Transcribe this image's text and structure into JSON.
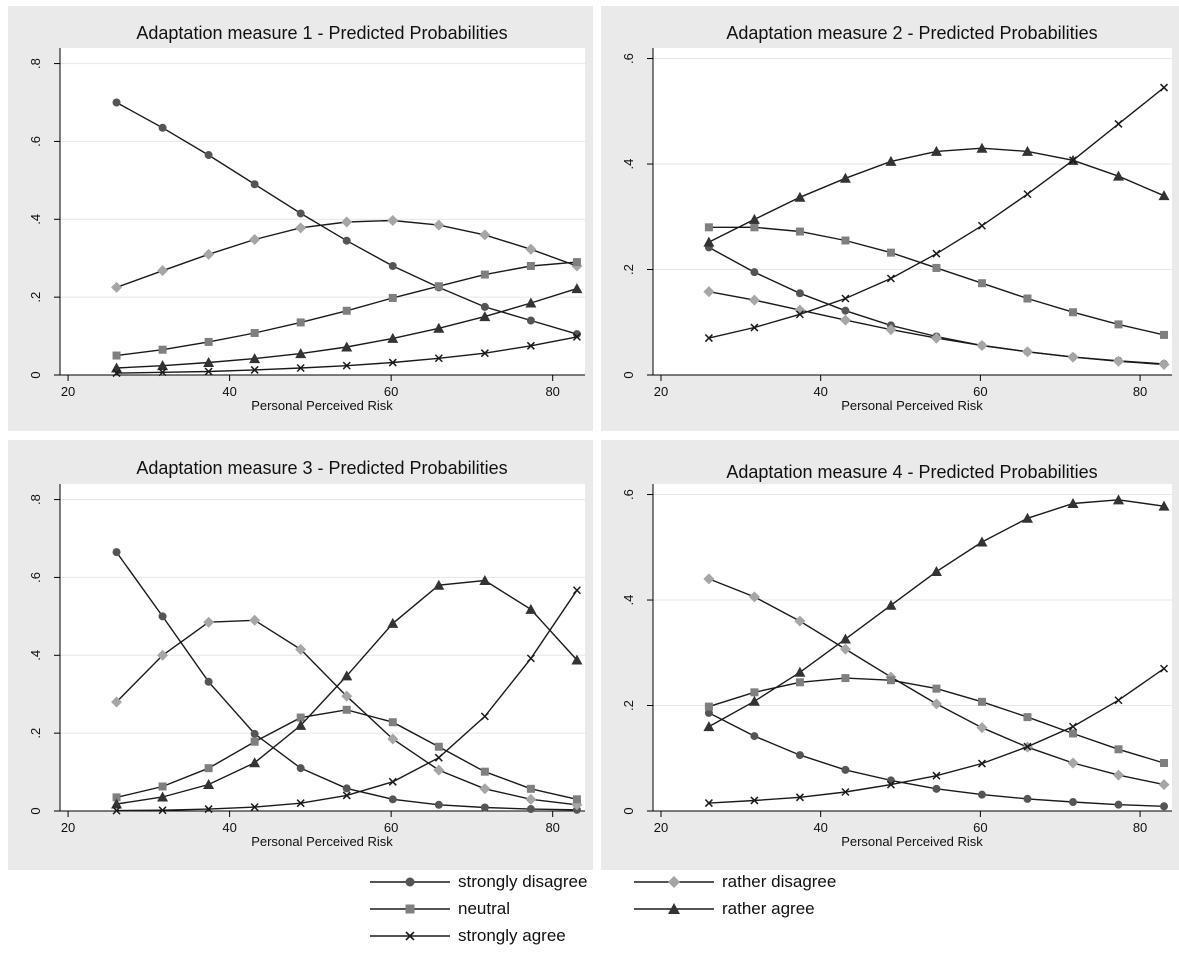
{
  "legend": {
    "items": [
      {
        "label": "strongly disagree",
        "marker": "circle",
        "color": "#555555"
      },
      {
        "label": "rather disagree",
        "marker": "diamond",
        "color": "#a6a6a6"
      },
      {
        "label": "neutral",
        "marker": "square",
        "color": "#7f7f7f"
      },
      {
        "label": "rather agree",
        "marker": "triangle",
        "color": "#333333"
      },
      {
        "label": "strongly agree",
        "marker": "x",
        "color": "#1a1a1a"
      }
    ]
  },
  "chart_data": [
    {
      "type": "line",
      "title": "Adaptation measure 1 - Predicted Probabilities",
      "xlabel": "Personal Perceived Risk",
      "ylabel": "",
      "xlim": [
        19,
        84
      ],
      "ylim": [
        0,
        0.84
      ],
      "xticks": [
        20,
        40,
        60,
        80
      ],
      "xtick_labels": [
        "20",
        "40",
        "60",
        "80"
      ],
      "yticks": [
        0,
        0.2,
        0.4,
        0.6,
        0.8
      ],
      "ytick_labels": [
        "0",
        ".2",
        ".4",
        ".6",
        ".8"
      ],
      "grid": true,
      "x": [
        26,
        31.7,
        37.4,
        43.1,
        48.8,
        54.5,
        60.2,
        65.9,
        71.6,
        77.3,
        83
      ],
      "series": [
        {
          "name": "strongly disagree",
          "marker": "circle",
          "values": [
            0.7,
            0.635,
            0.565,
            0.49,
            0.415,
            0.345,
            0.28,
            0.225,
            0.175,
            0.14,
            0.105
          ]
        },
        {
          "name": "rather disagree",
          "marker": "diamond",
          "values": [
            0.225,
            0.268,
            0.31,
            0.348,
            0.378,
            0.393,
            0.397,
            0.385,
            0.36,
            0.323,
            0.28
          ]
        },
        {
          "name": "neutral",
          "marker": "square",
          "values": [
            0.05,
            0.065,
            0.085,
            0.108,
            0.135,
            0.165,
            0.198,
            0.228,
            0.258,
            0.28,
            0.29
          ]
        },
        {
          "name": "rather agree",
          "marker": "triangle",
          "values": [
            0.018,
            0.024,
            0.032,
            0.042,
            0.055,
            0.072,
            0.094,
            0.12,
            0.15,
            0.185,
            0.222
          ]
        },
        {
          "name": "strongly agree",
          "marker": "x",
          "values": [
            0.005,
            0.007,
            0.009,
            0.013,
            0.018,
            0.024,
            0.032,
            0.043,
            0.056,
            0.075,
            0.098
          ]
        }
      ]
    },
    {
      "type": "line",
      "title": "Adaptation measure 2 - Predicted Probabilities",
      "xlabel": "Personal Perceived Risk",
      "ylabel": "",
      "xlim": [
        19,
        84
      ],
      "ylim": [
        0,
        0.62
      ],
      "xticks": [
        20,
        40,
        60,
        80
      ],
      "xtick_labels": [
        "20",
        "40",
        "60",
        "80"
      ],
      "yticks": [
        0,
        0.2,
        0.4,
        0.6
      ],
      "ytick_labels": [
        "0",
        ".2",
        ".4",
        ".6"
      ],
      "grid": true,
      "x": [
        26,
        31.7,
        37.4,
        43.1,
        48.8,
        54.5,
        60.2,
        65.9,
        71.6,
        77.3,
        83
      ],
      "series": [
        {
          "name": "strongly disagree",
          "marker": "circle",
          "values": [
            0.242,
            0.195,
            0.155,
            0.122,
            0.094,
            0.073,
            0.056,
            0.044,
            0.034,
            0.027,
            0.021
          ]
        },
        {
          "name": "rather disagree",
          "marker": "diamond",
          "values": [
            0.158,
            0.142,
            0.123,
            0.104,
            0.086,
            0.07,
            0.056,
            0.044,
            0.034,
            0.026,
            0.02
          ]
        },
        {
          "name": "neutral",
          "marker": "square",
          "values": [
            0.28,
            0.28,
            0.272,
            0.255,
            0.232,
            0.203,
            0.174,
            0.145,
            0.119,
            0.096,
            0.076
          ]
        },
        {
          "name": "rather agree",
          "marker": "triangle",
          "values": [
            0.252,
            0.295,
            0.337,
            0.373,
            0.405,
            0.424,
            0.43,
            0.424,
            0.407,
            0.377,
            0.34
          ]
        },
        {
          "name": "strongly agree",
          "marker": "x",
          "values": [
            0.07,
            0.09,
            0.115,
            0.145,
            0.183,
            0.23,
            0.283,
            0.343,
            0.407,
            0.476,
            0.545
          ]
        }
      ]
    },
    {
      "type": "line",
      "title": "Adaptation measure 3 - Predicted Probabilities",
      "xlabel": "Personal Perceived Risk",
      "ylabel": "",
      "xlim": [
        19,
        84
      ],
      "ylim": [
        0,
        0.84
      ],
      "xticks": [
        20,
        40,
        60,
        80
      ],
      "xtick_labels": [
        "20",
        "40",
        "60",
        "80"
      ],
      "yticks": [
        0,
        0.2,
        0.4,
        0.6,
        0.8
      ],
      "ytick_labels": [
        "0",
        ".2",
        ".4",
        ".6",
        ".8"
      ],
      "grid": true,
      "x": [
        26,
        31.7,
        37.4,
        43.1,
        48.8,
        54.5,
        60.2,
        65.9,
        71.6,
        77.3,
        83
      ],
      "series": [
        {
          "name": "strongly disagree",
          "marker": "circle",
          "values": [
            0.665,
            0.5,
            0.332,
            0.198,
            0.11,
            0.058,
            0.03,
            0.016,
            0.009,
            0.005,
            0.003
          ]
        },
        {
          "name": "rather disagree",
          "marker": "diamond",
          "values": [
            0.28,
            0.4,
            0.485,
            0.49,
            0.415,
            0.295,
            0.185,
            0.105,
            0.057,
            0.03,
            0.016
          ]
        },
        {
          "name": "neutral",
          "marker": "square",
          "values": [
            0.035,
            0.063,
            0.11,
            0.178,
            0.24,
            0.26,
            0.228,
            0.165,
            0.101,
            0.057,
            0.03
          ]
        },
        {
          "name": "rather agree",
          "marker": "triangle",
          "values": [
            0.018,
            0.036,
            0.068,
            0.124,
            0.22,
            0.347,
            0.482,
            0.58,
            0.592,
            0.518,
            0.388
          ]
        },
        {
          "name": "strongly agree",
          "marker": "x",
          "values": [
            0.001,
            0.002,
            0.005,
            0.01,
            0.02,
            0.04,
            0.075,
            0.137,
            0.243,
            0.392,
            0.567
          ]
        }
      ]
    },
    {
      "type": "line",
      "title": "Adaptation measure 4 - Predicted Probabilities",
      "xlabel": "Personal Perceived Risk",
      "ylabel": "",
      "xlim": [
        19,
        84
      ],
      "ylim": [
        0,
        0.62
      ],
      "xticks": [
        20,
        40,
        60,
        80
      ],
      "xtick_labels": [
        "20",
        "40",
        "60",
        "80"
      ],
      "yticks": [
        0,
        0.2,
        0.4,
        0.6
      ],
      "ytick_labels": [
        "0",
        ".2",
        ".4",
        ".6"
      ],
      "grid": true,
      "x": [
        26,
        31.7,
        37.4,
        43.1,
        48.8,
        54.5,
        60.2,
        65.9,
        71.6,
        77.3,
        83
      ],
      "series": [
        {
          "name": "strongly disagree",
          "marker": "circle",
          "values": [
            0.186,
            0.142,
            0.106,
            0.078,
            0.058,
            0.042,
            0.031,
            0.023,
            0.017,
            0.012,
            0.009
          ]
        },
        {
          "name": "rather disagree",
          "marker": "diamond",
          "values": [
            0.44,
            0.406,
            0.36,
            0.307,
            0.254,
            0.203,
            0.158,
            0.121,
            0.091,
            0.068,
            0.05
          ]
        },
        {
          "name": "neutral",
          "marker": "square",
          "values": [
            0.198,
            0.225,
            0.244,
            0.252,
            0.248,
            0.232,
            0.207,
            0.178,
            0.147,
            0.117,
            0.091
          ]
        },
        {
          "name": "rather agree",
          "marker": "triangle",
          "values": [
            0.16,
            0.208,
            0.263,
            0.326,
            0.39,
            0.454,
            0.51,
            0.555,
            0.583,
            0.59,
            0.578
          ]
        },
        {
          "name": "strongly agree",
          "marker": "x",
          "values": [
            0.015,
            0.02,
            0.026,
            0.036,
            0.05,
            0.067,
            0.09,
            0.122,
            0.16,
            0.21,
            0.27
          ]
        }
      ]
    }
  ]
}
